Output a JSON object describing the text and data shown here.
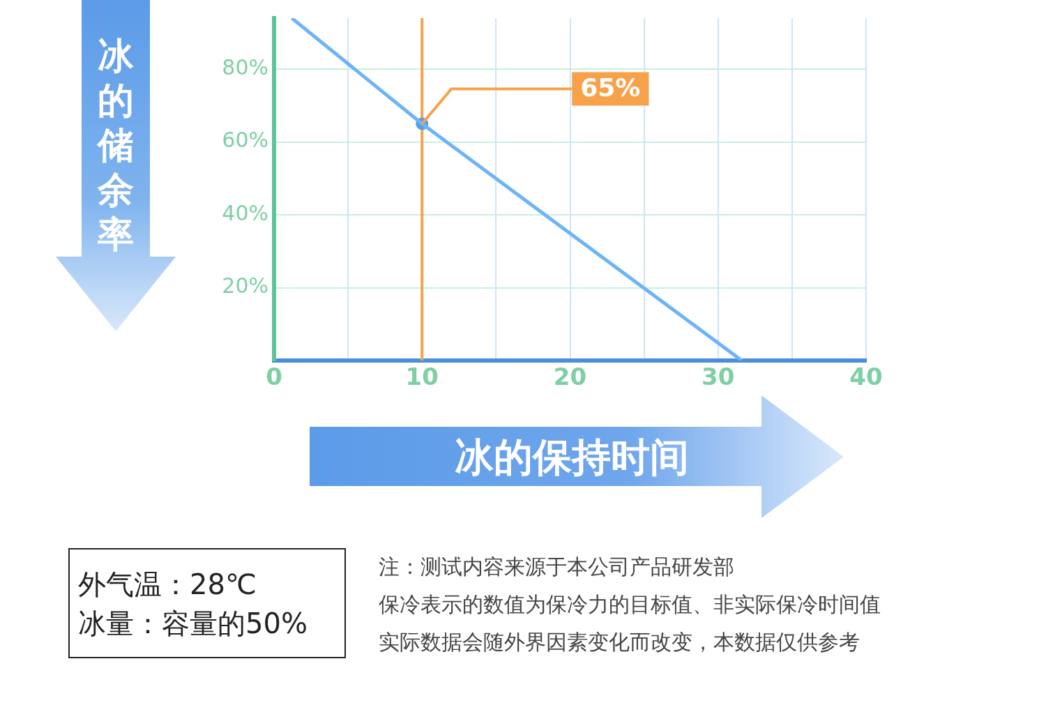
{
  "chart_data": {
    "type": "line",
    "xlabel": "冰的保持时间",
    "ylabel": "冰的储余率",
    "xlim": [
      0,
      40
    ],
    "xticks": [
      0,
      {
        "value": 5,
        "label": null
      },
      10,
      {
        "value": 15,
        "label": null
      },
      20,
      {
        "value": 25,
        "label": null
      },
      30,
      {
        "value": 35,
        "label": null
      },
      40
    ],
    "ylim": [
      0,
      94
    ],
    "yticks": [
      {
        "value": 20,
        "label": "20%"
      },
      {
        "value": 40,
        "label": "40%"
      },
      {
        "value": 60,
        "label": "60%"
      },
      {
        "value": 80,
        "label": "80%"
      }
    ],
    "series": [
      {
        "color": "#6db4f7",
        "x": [
          1.2,
          10,
          31.6
        ],
        "values": [
          94,
          65,
          0
        ],
        "marker": "none"
      },
      {
        "type": "scatter",
        "color": "#5b9be8",
        "x": [
          10
        ],
        "values": [
          65
        ],
        "marker": "circle"
      }
    ],
    "ref_lines": [
      {
        "axis": "x",
        "value": 10,
        "color": "#f7a24a"
      }
    ],
    "annotations": [
      {
        "text": "65%",
        "x": 10,
        "y": 65
      },
      "外气温：28℃",
      "冰量：容量的50%",
      "注：测试内容来源于本公司产品研发部",
      "保冷表示的数值为保冷力的目标值、非实际保冷时间值",
      "实际数据会随外界因素变化而改变，本数据仅供参考"
    ],
    "grid": true,
    "legend": false
  }
}
